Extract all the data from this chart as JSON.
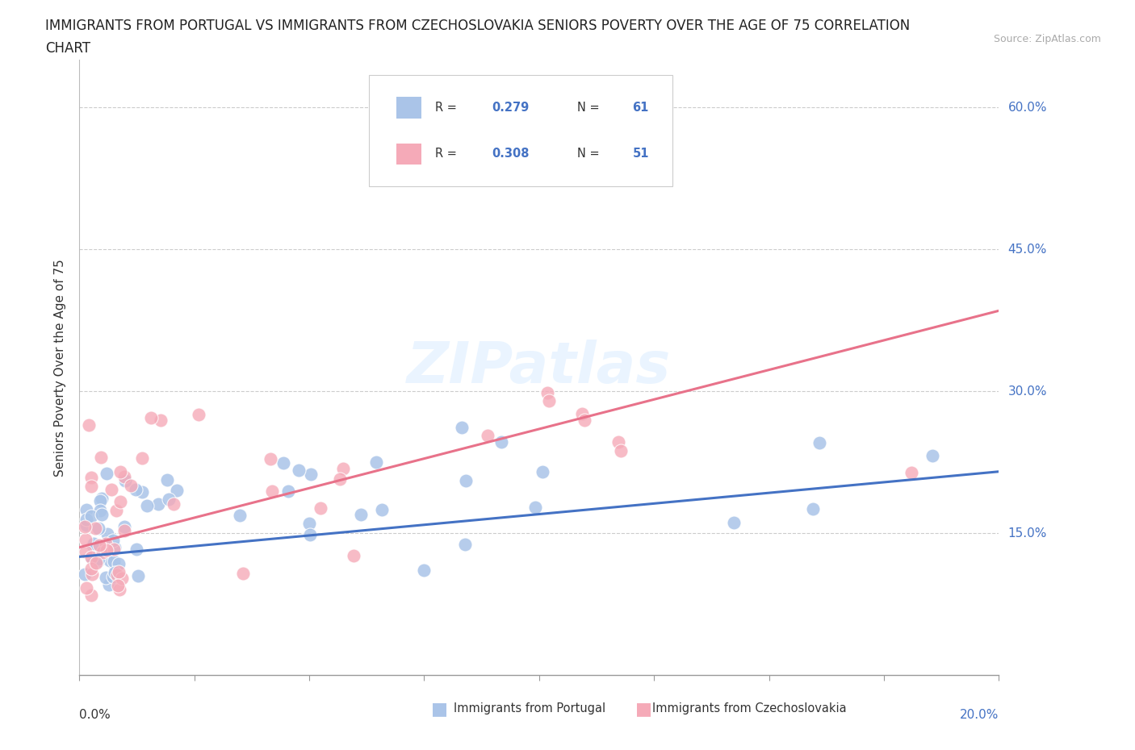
{
  "title_line1": "IMMIGRANTS FROM PORTUGAL VS IMMIGRANTS FROM CZECHOSLOVAKIA SENIORS POVERTY OVER THE AGE OF 75 CORRELATION",
  "title_line2": "CHART",
  "source_text": "Source: ZipAtlas.com",
  "ylabel": "Seniors Poverty Over the Age of 75",
  "xlim": [
    0.0,
    0.2
  ],
  "ylim": [
    0.0,
    0.65
  ],
  "yticks": [
    0.15,
    0.3,
    0.45,
    0.6
  ],
  "ytick_labels": [
    "15.0%",
    "30.0%",
    "45.0%",
    "60.0%"
  ],
  "grid_color": "#cccccc",
  "background_color": "#ffffff",
  "watermark_text": "ZIPatlas",
  "color_portugal": "#aac4e8",
  "color_czech": "#f5aab8",
  "line_color_portugal": "#4472c4",
  "line_color_czech": "#e8728a",
  "legend_label1": "Immigrants from Portugal",
  "legend_label2": "Immigrants from Czechoslovakia",
  "legend_R1": "0.279",
  "legend_N1": "61",
  "legend_R2": "0.308",
  "legend_N2": "51",
  "port_line_x0": 0.0,
  "port_line_y0": 0.125,
  "port_line_x1": 0.2,
  "port_line_y1": 0.215,
  "czech_line_x0": 0.0,
  "czech_line_y0": 0.135,
  "czech_line_x1": 0.2,
  "czech_line_y1": 0.385
}
